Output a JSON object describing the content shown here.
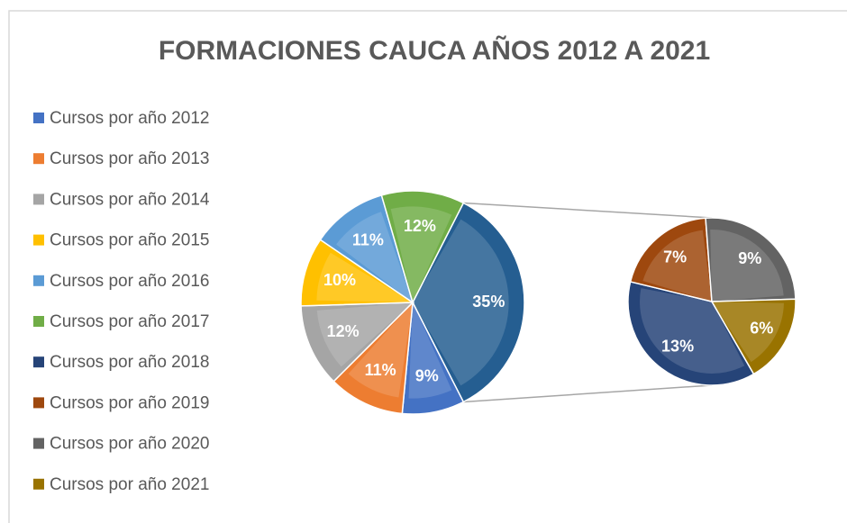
{
  "chart_data": {
    "type": "pie-of-pie",
    "title": "FORMACIONES CAUCA AÑOS 2012  A 2021",
    "categories": [
      "Cursos por año 2012",
      "Cursos por año 2013",
      "Cursos por año 2014",
      "Cursos por año 2015",
      "Cursos por año 2016",
      "Cursos por año 2017",
      "Cursos por año 2018",
      "Cursos por año 2019",
      "Cursos por año 2020",
      "Cursos por año 2021"
    ],
    "values": [
      9,
      11,
      12,
      10,
      11,
      12,
      13,
      7,
      9,
      6
    ],
    "value_labels": [
      "9%",
      "11%",
      "12%",
      "10%",
      "11%",
      "12%",
      "13%",
      "7%",
      "9%",
      "6%"
    ],
    "colors": [
      "#4472c4",
      "#ed7d31",
      "#a5a5a5",
      "#ffc000",
      "#5b9bd5",
      "#70ad47",
      "#264478",
      "#9e480e",
      "#636363",
      "#997300"
    ],
    "second_pie_from": 6,
    "other_value": 35,
    "other_label": "35%",
    "other_color": "#255e91",
    "legend": "left"
  }
}
